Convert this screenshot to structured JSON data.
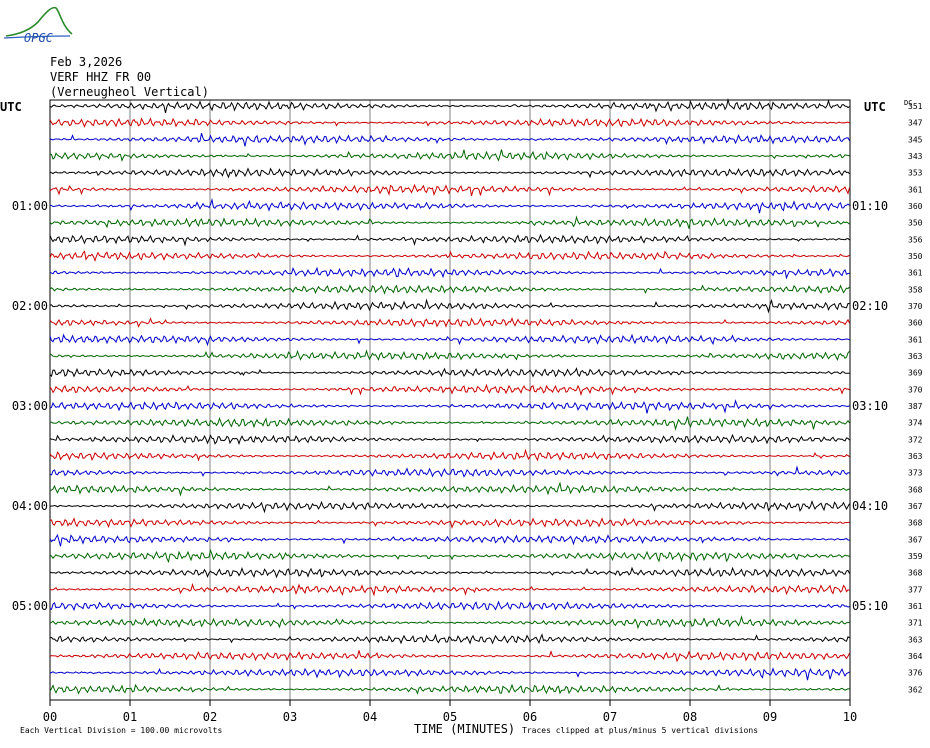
{
  "logo": {
    "text": "OPGC"
  },
  "header": {
    "date": "Feb 3,2026",
    "station": "VERF HHZ FR 00",
    "location": "(Verneugheol Vertical)"
  },
  "left_axis_label": "UTC",
  "right_axis_label": "UTC",
  "dc_label": "DC",
  "colors": {
    "black": "#000000",
    "red": "#cc0000",
    "blue": "#0000cc",
    "green": "#006600",
    "grid": "#000000"
  },
  "chart_data": {
    "type": "line",
    "title": "",
    "xlabel": "TIME (MINUTES)",
    "ylabel": "",
    "xlim": [
      0,
      10
    ],
    "x_ticks": [
      "00",
      "01",
      "02",
      "03",
      "04",
      "05",
      "06",
      "07",
      "08",
      "09",
      "10"
    ],
    "grid": true,
    "trace_colors_cycle": [
      "black",
      "red",
      "blue",
      "green"
    ],
    "traces_count": 36,
    "left_time_labels": [
      {
        "trace": 6,
        "label": "01:00"
      },
      {
        "trace": 12,
        "label": "02:00"
      },
      {
        "trace": 18,
        "label": "03:00"
      },
      {
        "trace": 24,
        "label": "04:00"
      },
      {
        "trace": 30,
        "label": "05:00"
      }
    ],
    "right_time_labels": [
      {
        "trace": 6,
        "label": "01:10"
      },
      {
        "trace": 12,
        "label": "02:10"
      },
      {
        "trace": 18,
        "label": "03:10"
      },
      {
        "trace": 24,
        "label": "04:10"
      },
      {
        "trace": 30,
        "label": "05:10"
      }
    ],
    "dc_offsets": [
      351,
      347,
      345,
      343,
      353,
      361,
      360,
      350,
      356,
      350,
      361,
      358,
      370,
      360,
      361,
      363,
      369,
      370,
      387,
      374,
      372,
      363,
      373,
      368,
      367,
      368,
      367,
      359,
      368,
      377,
      361,
      371,
      363,
      364,
      376,
      362
    ]
  },
  "footer": {
    "scale_note": "Each Vertical Division =  100.00 microvolts",
    "clip_note": "Traces clipped at plus/minus 5 vertical divisions"
  }
}
